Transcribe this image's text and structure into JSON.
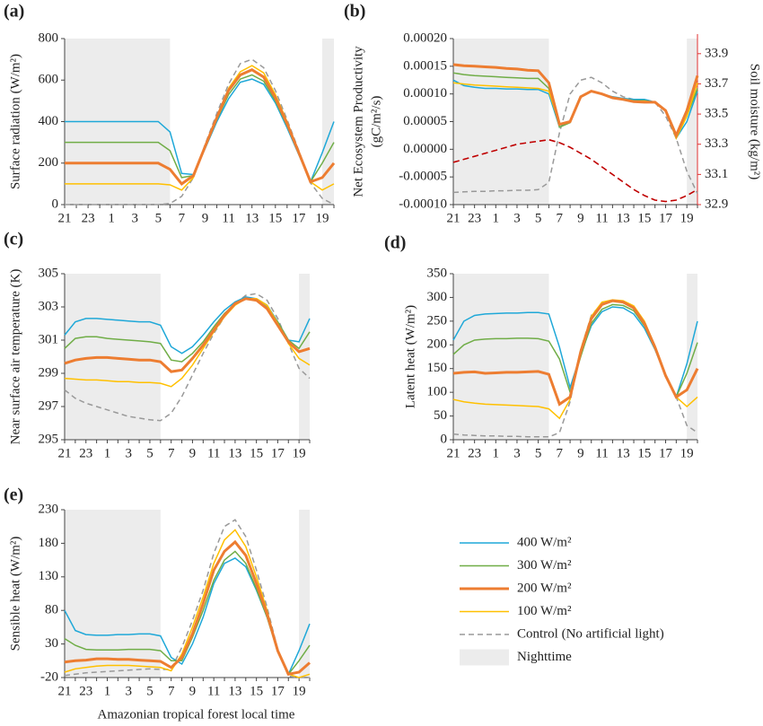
{
  "legend": {
    "series": [
      {
        "name": "400 W/m²",
        "color": "#1fa8d8",
        "width": 1.5,
        "dash": ""
      },
      {
        "name": "300 W/m²",
        "color": "#70ad47",
        "width": 1.5,
        "dash": ""
      },
      {
        "name": "200 W/m²",
        "color": "#ed7d31",
        "width": 3,
        "dash": ""
      },
      {
        "name": "100 W/m²",
        "color": "#ffc000",
        "width": 1.5,
        "dash": ""
      },
      {
        "name": "Control (No artificial light)",
        "color": "#999999",
        "width": 1.5,
        "dash": "6,4"
      }
    ],
    "night": {
      "name": "Nighttime",
      "color": "#ececec",
      "spans": [
        [
          21,
          6
        ],
        [
          19,
          20
        ]
      ]
    }
  },
  "chart_data": [
    {
      "type": "line",
      "label": "(a)",
      "ylabel": [
        "Surface radiation (W/m²)"
      ],
      "categories": [
        "21",
        null,
        "23",
        null,
        "1",
        null,
        "3",
        null,
        "5",
        null,
        "7",
        null,
        "9",
        null,
        "11",
        null,
        "13",
        null,
        "15",
        null,
        "17",
        null,
        "19",
        null
      ],
      "ylim": [
        0,
        800
      ],
      "yticks": [
        0,
        200,
        400,
        600,
        800
      ],
      "series": [
        {
          "values": [
            400,
            400,
            400,
            400,
            400,
            400,
            400,
            400,
            400,
            350,
            150,
            145,
            270,
            400,
            510,
            590,
            605,
            580,
            490,
            370,
            240,
            110,
            250,
            400
          ]
        },
        {
          "values": [
            300,
            300,
            300,
            300,
            300,
            300,
            300,
            300,
            300,
            260,
            130,
            140,
            275,
            410,
            530,
            605,
            625,
            595,
            500,
            380,
            245,
            110,
            200,
            300
          ]
        },
        {
          "values": [
            200,
            200,
            200,
            200,
            200,
            200,
            200,
            200,
            200,
            170,
            100,
            140,
            280,
            420,
            550,
            625,
            650,
            615,
            515,
            390,
            250,
            110,
            130,
            200
          ]
        },
        {
          "values": [
            100,
            100,
            100,
            100,
            100,
            100,
            100,
            100,
            100,
            95,
            70,
            130,
            280,
            425,
            560,
            640,
            670,
            635,
            530,
            400,
            255,
            110,
            70,
            100
          ]
        },
        {
          "values": [
            0,
            0,
            0,
            0,
            0,
            0,
            0,
            0,
            0,
            5,
            40,
            130,
            290,
            440,
            580,
            680,
            700,
            660,
            550,
            410,
            260,
            105,
            30,
            0
          ]
        }
      ]
    },
    {
      "type": "line",
      "label": "(b)",
      "ylabel": [
        "Net Ecosystem Productivity",
        "(gC/m²/s)"
      ],
      "y2label": "Soil moisture (kg/m²)",
      "categories": [
        "21",
        null,
        "23",
        null,
        "1",
        null,
        "3",
        null,
        "5",
        null,
        "7",
        null,
        "9",
        null,
        "11",
        null,
        "13",
        null,
        "15",
        null,
        "17",
        null,
        "19",
        null
      ],
      "ylim": [
        -0.0001,
        0.0002
      ],
      "yticks": [
        {
          "value": -0.0001,
          "label": "-0.00010"
        },
        -5e-05,
        {
          "value": 0,
          "label": "0.00000"
        },
        5e-05,
        {
          "value": 0.0001,
          "label": "0.00010"
        },
        0.00015,
        {
          "value": 0.0002,
          "label": "0.00020"
        }
      ],
      "y2lim": [
        32.9,
        34.0
      ],
      "y2ticks": [
        32.9,
        33.1,
        33.3,
        33.5,
        33.7,
        33.9
      ],
      "y2color": "#e03030",
      "series": [
        {
          "values": [
            0.000125,
            0.000115,
            0.000112,
            0.00011,
            0.00011,
            0.000109,
            0.000109,
            0.000108,
            0.000108,
            0.0001,
            4e-05,
            5e-05,
            9.5e-05,
            0.000105,
            0.0001,
            9.5e-05,
            9.2e-05,
            9e-05,
            9e-05,
            8.5e-05,
            7e-05,
            2e-05,
            5e-05,
            0.000105
          ]
        },
        {
          "values": [
            0.000138,
            0.000135,
            0.000133,
            0.000132,
            0.000131,
            0.00013,
            0.000129,
            0.000128,
            0.000128,
            0.00011,
            4e-05,
            4.8e-05,
            9.5e-05,
            0.000105,
            0.0001,
            9.4e-05,
            9.1e-05,
            8.8e-05,
            8.8e-05,
            8.5e-05,
            7e-05,
            2e-05,
            6e-05,
            0.00011
          ]
        },
        {
          "values": [
            0.000153,
            0.000151,
            0.00015,
            0.000149,
            0.000148,
            0.000146,
            0.000145,
            0.000143,
            0.000142,
            0.00012,
            4.5e-05,
            5e-05,
            9.5e-05,
            0.000105,
            0.0001,
            9.3e-05,
            9e-05,
            8.6e-05,
            8.5e-05,
            8.5e-05,
            7e-05,
            2.5e-05,
            7e-05,
            0.000133
          ]
        },
        {
          "values": [
            0.00012,
            0.000118,
            0.000116,
            0.000115,
            0.000114,
            0.000113,
            0.000112,
            0.000111,
            0.00011,
            0.000105,
            4.5e-05,
            5e-05,
            9.5e-05,
            0.000105,
            0.0001,
            9.3e-05,
            9e-05,
            8.7e-05,
            8.7e-05,
            8.5e-05,
            7e-05,
            2e-05,
            6e-05,
            0.00012
          ]
        },
        {
          "values": [
            -7.8e-05,
            -7.7e-05,
            -7.6e-05,
            -7.6e-05,
            -7.5e-05,
            -7.5e-05,
            -7.4e-05,
            -7.4e-05,
            -7.3e-05,
            -6e-05,
            3e-05,
            0.0001,
            0.000125,
            0.00013,
            0.00012,
            0.000105,
            9.5e-05,
            9e-05,
            9e-05,
            8.5e-05,
            6e-05,
            2e-05,
            -4e-05,
            -8e-05
          ]
        },
        {
          "axis": "y2",
          "color": "#c00000",
          "dash": "7,4",
          "values": [
            33.18,
            33.2,
            33.22,
            33.24,
            33.26,
            33.28,
            33.3,
            33.31,
            33.32,
            33.33,
            33.31,
            33.28,
            33.24,
            33.2,
            33.15,
            33.1,
            33.05,
            33.0,
            32.96,
            32.93,
            32.92,
            32.93,
            32.96,
            33.0
          ]
        }
      ]
    },
    {
      "type": "line",
      "label": "(c)",
      "ylabel": [
        "Near surface air temperature (K)"
      ],
      "categories": [
        "21",
        null,
        "23",
        null,
        "1",
        null,
        "3",
        null,
        "5",
        null,
        "7",
        null,
        "9",
        null,
        "11",
        null,
        "13",
        null,
        "15",
        null,
        "17",
        null,
        "19",
        null
      ],
      "ylim": [
        295,
        305
      ],
      "yticks": [
        295,
        297,
        299,
        301,
        303,
        305
      ],
      "series": [
        {
          "values": [
            301.3,
            302.1,
            302.3,
            302.3,
            302.25,
            302.2,
            302.15,
            302.1,
            302.1,
            301.9,
            300.6,
            300.2,
            300.6,
            301.3,
            302.1,
            302.8,
            303.3,
            303.6,
            303.5,
            303.1,
            302.1,
            301,
            300.9,
            302.3
          ]
        },
        {
          "values": [
            300.5,
            301.1,
            301.2,
            301.2,
            301.1,
            301.05,
            301,
            300.95,
            300.9,
            300.8,
            299.8,
            299.7,
            300.2,
            300.9,
            301.8,
            302.6,
            303.2,
            303.5,
            303.4,
            303,
            302.1,
            301,
            300.5,
            301.5
          ]
        },
        {
          "values": [
            299.6,
            299.8,
            299.9,
            299.95,
            299.95,
            299.9,
            299.85,
            299.8,
            299.8,
            299.7,
            299.1,
            299.2,
            299.9,
            300.7,
            301.6,
            302.5,
            303.2,
            303.5,
            303.4,
            302.9,
            301.9,
            300.9,
            300.3,
            300.5
          ]
        },
        {
          "values": [
            298.7,
            298.65,
            298.6,
            298.6,
            298.55,
            298.5,
            298.5,
            298.45,
            298.45,
            298.4,
            298.2,
            298.7,
            299.5,
            300.5,
            301.5,
            302.4,
            303.1,
            303.5,
            303.5,
            303.1,
            302,
            300.8,
            299.9,
            299.5
          ]
        },
        {
          "values": [
            298,
            297.5,
            297.2,
            297,
            296.8,
            296.6,
            296.4,
            296.3,
            296.2,
            296.15,
            296.6,
            297.6,
            298.9,
            300.2,
            301.4,
            302.4,
            303.2,
            303.7,
            303.8,
            303.4,
            302.3,
            300.8,
            299.3,
            298.7
          ]
        }
      ]
    },
    {
      "type": "line",
      "label": "(d)",
      "ylabel": [
        "Latent heat (W/m²)"
      ],
      "categories": [
        "21",
        null,
        "23",
        null,
        "1",
        null,
        "3",
        null,
        "5",
        null,
        "7",
        null,
        "9",
        null,
        "11",
        null,
        "13",
        null,
        "15",
        null,
        "17",
        null,
        "19",
        null
      ],
      "ylim": [
        0,
        350
      ],
      "yticks": [
        0,
        50,
        100,
        150,
        200,
        250,
        300,
        350
      ],
      "series": [
        {
          "values": [
            210,
            250,
            262,
            265,
            266,
            267,
            267,
            268,
            268,
            265,
            195,
            110,
            180,
            240,
            270,
            280,
            278,
            265,
            235,
            190,
            135,
            90,
            160,
            250
          ]
        },
        {
          "values": [
            180,
            200,
            210,
            212,
            213,
            213,
            214,
            214,
            213,
            208,
            170,
            100,
            175,
            245,
            275,
            285,
            283,
            272,
            240,
            192,
            135,
            90,
            140,
            205
          ]
        },
        {
          "values": [
            140,
            142,
            143,
            140,
            141,
            142,
            142,
            143,
            144,
            138,
            75,
            90,
            185,
            255,
            285,
            293,
            290,
            278,
            245,
            195,
            135,
            90,
            105,
            150
          ]
        },
        {
          "values": [
            85,
            80,
            77,
            75,
            74,
            73,
            72,
            71,
            70,
            65,
            45,
            85,
            190,
            260,
            290,
            295,
            293,
            282,
            250,
            198,
            138,
            90,
            70,
            90
          ]
        },
        {
          "values": [
            12,
            10,
            9,
            8,
            8,
            7,
            7,
            6,
            6,
            6,
            15,
            80,
            190,
            262,
            288,
            292,
            290,
            280,
            248,
            195,
            135,
            90,
            30,
            15
          ]
        }
      ]
    },
    {
      "type": "line",
      "label": "(e)",
      "ylabel": [
        "Sensible heat (W/m²)"
      ],
      "xlabel": "Amazonian tropical forest local time",
      "categories": [
        "21",
        null,
        "23",
        null,
        "1",
        null,
        "3",
        null,
        "5",
        null,
        "7",
        null,
        "9",
        null,
        "11",
        null,
        "13",
        null,
        "15",
        null,
        "17",
        null,
        "19",
        null
      ],
      "ylim": [
        -20,
        230
      ],
      "yticks": [
        -20,
        30,
        80,
        130,
        180,
        230
      ],
      "series": [
        {
          "values": [
            80,
            50,
            44,
            43,
            43,
            44,
            44,
            45,
            45,
            42,
            10,
            0,
            30,
            70,
            120,
            150,
            158,
            145,
            110,
            70,
            20,
            -15,
            20,
            60
          ]
        },
        {
          "values": [
            38,
            28,
            22,
            21,
            21,
            21,
            22,
            22,
            22,
            20,
            5,
            5,
            40,
            80,
            125,
            155,
            168,
            150,
            112,
            70,
            18,
            -15,
            5,
            28
          ]
        },
        {
          "values": [
            3,
            5,
            6,
            8,
            8,
            7,
            7,
            6,
            5,
            4,
            -5,
            10,
            45,
            90,
            140,
            168,
            182,
            162,
            120,
            75,
            20,
            -15,
            -12,
            2
          ]
        },
        {
          "values": [
            -12,
            -7,
            -5,
            -3,
            -2,
            -2,
            -2,
            -3,
            -4,
            -5,
            -10,
            15,
            55,
            100,
            150,
            185,
            200,
            175,
            130,
            80,
            20,
            -15,
            -20,
            -15
          ]
        },
        {
          "values": [
            -17,
            -15,
            -13,
            -12,
            -11,
            -10,
            -9,
            -8,
            -7,
            -8,
            -8,
            25,
            65,
            110,
            165,
            205,
            215,
            190,
            140,
            85,
            22,
            -18,
            -20,
            -20
          ]
        }
      ]
    }
  ]
}
